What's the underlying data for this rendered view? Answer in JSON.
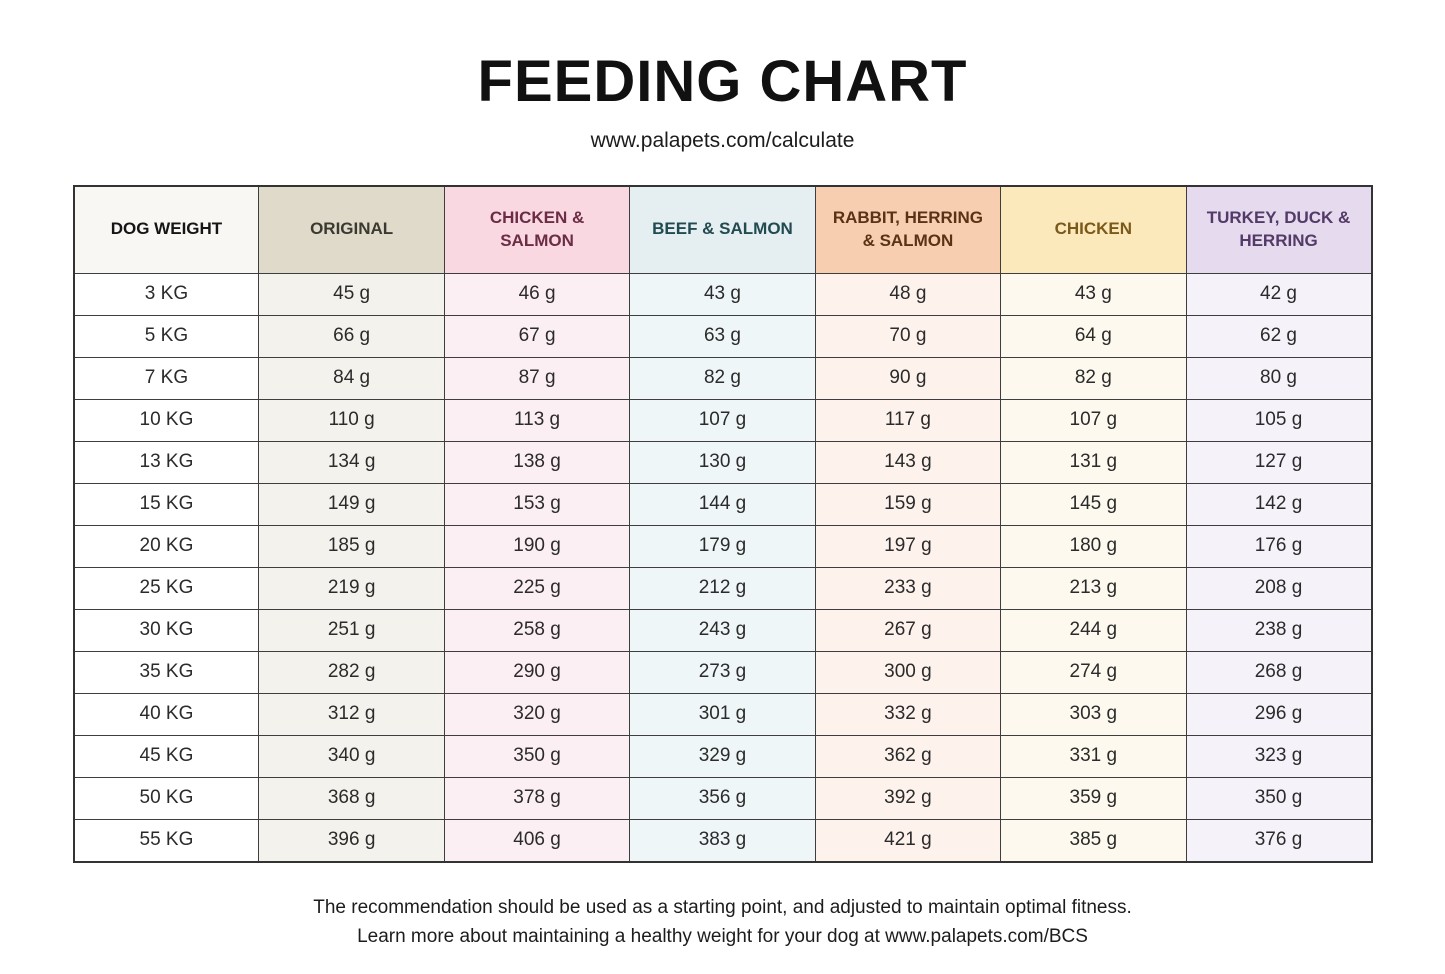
{
  "page": {
    "title": "FEEDING CHART",
    "subtitle": "www.palapets.com/calculate",
    "footer_line1": "The recommendation should be used as a starting point, and adjusted to maintain optimal fitness.",
    "footer_line2": "Learn more about maintaining a healthy weight for your dog at www.palapets.com/BCS"
  },
  "table": {
    "columns": [
      {
        "label": "DOG WEIGHT",
        "header_bg": "#f8f7f4",
        "header_text": "#151515",
        "body_bg": "#ffffff"
      },
      {
        "label": "ORIGINAL",
        "header_bg": "#e0dacb",
        "header_text": "#3b3a31",
        "body_bg": "#f3f2ed"
      },
      {
        "label": "CHICKEN & SALMON",
        "header_bg": "#fad8e2",
        "header_text": "#6b2d45",
        "body_bg": "#fbeff3"
      },
      {
        "label": "BEEF & SALMON",
        "header_bg": "#e5eef0",
        "header_text": "#224b51",
        "body_bg": "#eff6f7"
      },
      {
        "label": "RABBIT, HERRING & SALMON",
        "header_bg": "#f8ceb1",
        "header_text": "#5a3317",
        "body_bg": "#fdf2ec"
      },
      {
        "label": "CHICKEN",
        "header_bg": "#fbe9bc",
        "header_text": "#7b591a",
        "body_bg": "#fdf9ee"
      },
      {
        "label": "TURKEY, DUCK & HERRING",
        "header_bg": "#e5daee",
        "header_text": "#543a67",
        "body_bg": "#f6f2f9"
      }
    ]
  },
  "chart_data": {
    "type": "table",
    "title": "FEEDING CHART",
    "row_header": "DOG WEIGHT",
    "unit": "g",
    "categories": [
      "3 KG",
      "5 KG",
      "7 KG",
      "10 KG",
      "13 KG",
      "15 KG",
      "20 KG",
      "25 KG",
      "30 KG",
      "35 KG",
      "40 KG",
      "45 KG",
      "50 KG",
      "55 KG"
    ],
    "series": [
      {
        "name": "ORIGINAL",
        "values": [
          45,
          66,
          84,
          110,
          134,
          149,
          185,
          219,
          251,
          282,
          312,
          340,
          368,
          396
        ]
      },
      {
        "name": "CHICKEN & SALMON",
        "values": [
          46,
          67,
          87,
          113,
          138,
          153,
          190,
          225,
          258,
          290,
          320,
          350,
          378,
          406
        ]
      },
      {
        "name": "BEEF & SALMON",
        "values": [
          43,
          63,
          82,
          107,
          130,
          144,
          179,
          212,
          243,
          273,
          301,
          329,
          356,
          383
        ]
      },
      {
        "name": "RABBIT, HERRING & SALMON",
        "values": [
          48,
          70,
          90,
          117,
          143,
          159,
          197,
          233,
          267,
          300,
          332,
          362,
          392,
          421
        ]
      },
      {
        "name": "CHICKEN",
        "values": [
          43,
          64,
          82,
          107,
          131,
          145,
          180,
          213,
          244,
          274,
          303,
          331,
          359,
          385
        ]
      },
      {
        "name": "TURKEY, DUCK & HERRING",
        "values": [
          42,
          62,
          80,
          105,
          127,
          142,
          176,
          208,
          238,
          268,
          296,
          323,
          350,
          376
        ]
      }
    ]
  }
}
